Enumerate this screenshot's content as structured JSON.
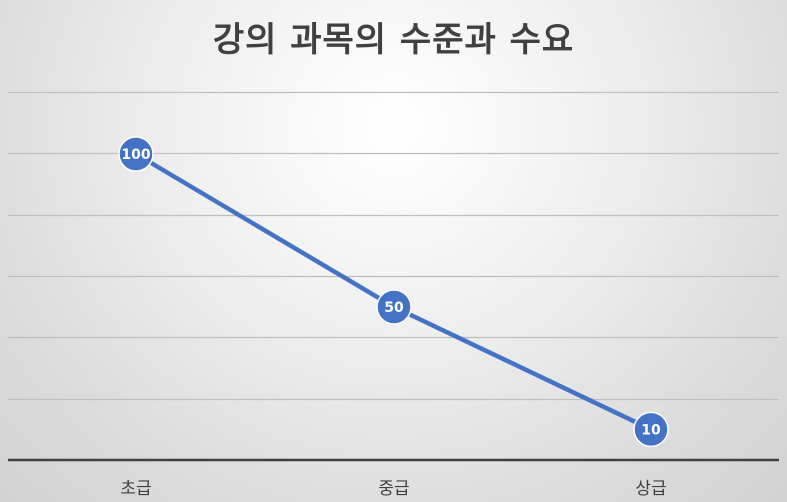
{
  "chart_data": {
    "type": "line",
    "title": "강의 과목의 수준과 수요",
    "categories": [
      "초급",
      "중급",
      "상급"
    ],
    "series": [
      {
        "values": [
          100,
          50,
          10
        ]
      }
    ],
    "ylim": [
      0,
      100
    ],
    "grid": true,
    "legend": "none",
    "data_labels": true,
    "colors": {
      "line": "#4472c4",
      "marker": "#4472c4",
      "marker_edge": "#ffffff",
      "gridline": "#bfbfbf",
      "axis": "#404040"
    }
  }
}
